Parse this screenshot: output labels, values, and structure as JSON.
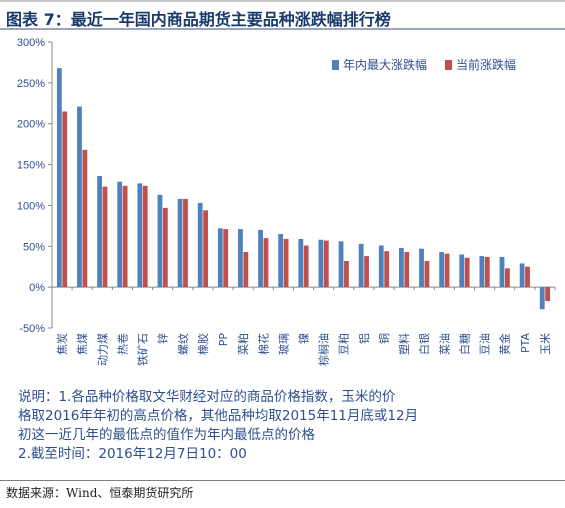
{
  "title": "图表  7：最近一年国内商品期货主要品种涨跌幅排行榜",
  "colors": {
    "series1": "#4f81bd",
    "series2": "#c0504d",
    "axis": "#888888",
    "text": "#2f4f8f"
  },
  "chart_data": {
    "type": "bar",
    "categories": [
      "焦炭",
      "焦煤",
      "动力煤",
      "热卷",
      "铁矿石",
      "锌",
      "螺纹",
      "橡胶",
      "PP",
      "菜粕",
      "棉花",
      "玻璃",
      "镍",
      "棕榈油",
      "豆粕",
      "铝",
      "铜",
      "塑料",
      "白银",
      "菜油",
      "白糖",
      "豆油",
      "黄金",
      "PTA",
      "玉米"
    ],
    "series": [
      {
        "name": "年内最大涨跌幅",
        "values": [
          268,
          221,
          136,
          129,
          127,
          113,
          108,
          103,
          72,
          71,
          70,
          65,
          59,
          58,
          56,
          53,
          51,
          48,
          47,
          43,
          40,
          38,
          37,
          29,
          -27
        ]
      },
      {
        "name": "当前涨跌幅",
        "values": [
          215,
          168,
          123,
          124,
          124,
          97,
          108,
          94,
          71,
          43,
          60,
          59,
          51,
          57,
          32,
          38,
          44,
          43,
          32,
          41,
          36,
          37,
          23,
          25,
          -17
        ]
      }
    ],
    "ylim": [
      -50,
      300
    ],
    "yticks": [
      -50,
      0,
      50,
      100,
      150,
      200,
      250,
      300
    ],
    "ytick_labels": [
      "-50%",
      "0%",
      "50%",
      "100%",
      "150%",
      "200%",
      "250%",
      "300%"
    ],
    "legend_position": "top-right",
    "grid": false
  },
  "notes": [
    "说明：1.各品种价格取文华财经对应的商品价格指数，玉米的价",
    "格取2016年年初的高点价格，其他品种均取2015年11月底或12月",
    "初这一近几年的最低点的值作为年内最低点的价格",
    "2.截至时间：2016年12月7日10：00"
  ],
  "source": "数据来源：Wind、恒泰期货研究所"
}
